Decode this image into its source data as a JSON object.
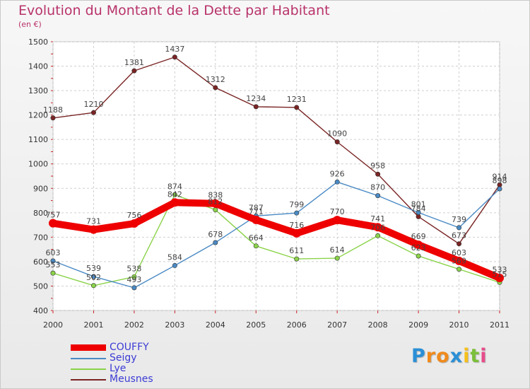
{
  "title": "Evolution du Montant de la Dette par Habitant",
  "subtitle": "(en €)",
  "logo": {
    "text": "Proxiti",
    "letters": [
      "P",
      "r",
      "o",
      "x",
      "i",
      "t",
      "i"
    ],
    "colors": [
      "#2a8fd6",
      "#f08a1c",
      "#f08a1c",
      "#2a8fd6",
      "#f5c01a",
      "#7bbf3a",
      "#e84b8a"
    ]
  },
  "chart_data": {
    "type": "line",
    "x": [
      "2000",
      "2001",
      "2002",
      "2003",
      "2004",
      "2005",
      "2006",
      "2007",
      "2008",
      "2009",
      "2010",
      "2011"
    ],
    "ylim": [
      400,
      1500
    ],
    "yticks": [
      400,
      500,
      600,
      700,
      800,
      900,
      1000,
      1100,
      1200,
      1300,
      1400,
      1500
    ],
    "grid": true,
    "legend_position": "bottom-left",
    "series": [
      {
        "name": "COUFFY",
        "color": "#ee0000",
        "values": [
          757,
          731,
          756,
          842,
          838,
          771,
          716,
          770,
          741,
          669,
          603,
          533
        ]
      },
      {
        "name": "Seigy",
        "color": "#4a8ac4",
        "values": [
          603,
          539,
          493,
          584,
          678,
          787,
          799,
          926,
          870,
          801,
          739,
          898
        ]
      },
      {
        "name": "Lye",
        "color": "#8bd34a",
        "values": [
          553,
          502,
          538,
          874,
          812,
          664,
          611,
          614,
          706,
          623,
          569,
          515
        ]
      },
      {
        "name": "Meusnes",
        "color": "#7a2424",
        "values": [
          1188,
          1210,
          1381,
          1437,
          1312,
          1234,
          1231,
          1090,
          958,
          784,
          673,
          914
        ]
      }
    ]
  }
}
